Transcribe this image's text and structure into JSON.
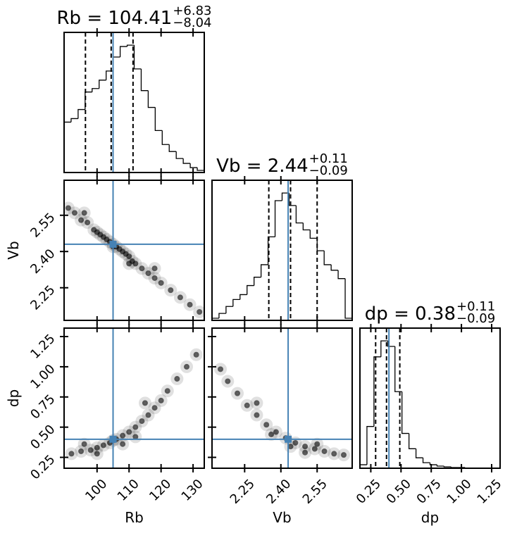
{
  "chart_data": [
    {
      "type": "histogram",
      "title": "Rb = 104.41",
      "title_upper": "+6.83",
      "title_lower": "−8.04",
      "bins": [
        89.7,
        91.89,
        94.08,
        96.27,
        98.46,
        100.65,
        102.84,
        105.03,
        107.22,
        109.41,
        111.6,
        113.79,
        115.98,
        118.17,
        120.36,
        122.55,
        124.74,
        126.93,
        129.12,
        131.31,
        133.5
      ],
      "values": [
        72,
        77,
        90,
        115,
        120,
        132,
        145,
        165,
        180,
        182,
        148,
        117,
        93,
        60,
        40,
        30,
        20,
        13,
        7,
        3
      ],
      "quantiles": [
        96.37,
        104.41,
        111.24
      ],
      "truth": 105,
      "truth_color": "#4682b4",
      "color": "#000000",
      "xlim": [
        89.7,
        133.5
      ],
      "xticks": [
        100,
        110,
        120,
        130
      ]
    },
    {
      "type": "scatter",
      "x": [
        91,
        93,
        95,
        97,
        99,
        100,
        101,
        102,
        103,
        104,
        105,
        105,
        106,
        107,
        108,
        109,
        110,
        111,
        112,
        114,
        116,
        118,
        120,
        123,
        126,
        129,
        132,
        96,
        110,
        118
      ],
      "y": [
        2.58,
        2.56,
        2.53,
        2.52,
        2.49,
        2.48,
        2.47,
        2.46,
        2.45,
        2.44,
        2.43,
        2.42,
        2.42,
        2.41,
        2.4,
        2.39,
        2.38,
        2.36,
        2.35,
        2.33,
        2.31,
        2.29,
        2.27,
        2.24,
        2.21,
        2.18,
        2.15,
        2.56,
        2.35,
        2.33
      ],
      "truth_x": 105,
      "truth_y": 2.43,
      "truth_color": "#4682b4",
      "color": "#000000",
      "xlim": [
        89.7,
        133.5
      ],
      "xticks": [
        100,
        110,
        120,
        130
      ],
      "ylim": [
        2.115,
        2.695
      ],
      "yticks": [
        2.25,
        {
          "value": 2.4,
          "label": "2.40"
        },
        2.55
      ],
      "ylabel": "Vb"
    },
    {
      "type": "histogram",
      "title": "Vb = 2.44",
      "title_upper": "+0.11",
      "title_lower": "−0.09",
      "bins": [
        2.115,
        2.144,
        2.173,
        2.202,
        2.231,
        2.26,
        2.289,
        2.318,
        2.347,
        2.376,
        2.405,
        2.434,
        2.463,
        2.492,
        2.521,
        2.55,
        2.579,
        2.608,
        2.637,
        2.666,
        2.695
      ],
      "values": [
        3,
        10,
        20,
        30,
        37,
        50,
        62,
        80,
        120,
        172,
        183,
        165,
        140,
        130,
        118,
        100,
        80,
        72,
        60,
        3
      ],
      "quantiles": [
        2.35,
        2.44,
        2.55
      ],
      "truth": 2.43,
      "truth_color": "#4682b4",
      "color": "#000000",
      "xlim": [
        2.115,
        2.695
      ],
      "xticks": [
        2.25,
        {
          "value": 2.4,
          "label": "2.40"
        },
        2.55
      ]
    },
    {
      "type": "scatter",
      "x": [
        92,
        95,
        98,
        100,
        102,
        104,
        105,
        106,
        108,
        110,
        112,
        114,
        116,
        118,
        120,
        122,
        125,
        128,
        131,
        100,
        108,
        112,
        115,
        96
      ],
      "y": [
        0.28,
        0.3,
        0.31,
        0.33,
        0.35,
        0.37,
        0.39,
        0.4,
        0.43,
        0.46,
        0.5,
        0.55,
        0.6,
        0.66,
        0.72,
        0.8,
        0.9,
        1.0,
        1.1,
        0.28,
        0.36,
        0.42,
        0.7,
        0.36
      ],
      "truth_x": 105,
      "truth_y": 0.4,
      "truth_color": "#4682b4",
      "color": "#000000",
      "xlim": [
        89.7,
        133.5
      ],
      "xticks": [
        100,
        110,
        120,
        130
      ],
      "xlabel": "Rb",
      "ylim": [
        0.16,
        1.32
      ],
      "yticks": [
        0.25,
        {
          "value": 0.5,
          "label": "0.50"
        },
        0.75,
        {
          "value": 1,
          "label": "1.00"
        },
        1.25
      ],
      "ylabel": "dp"
    },
    {
      "type": "scatter",
      "x": [
        2.15,
        2.18,
        2.22,
        2.26,
        2.3,
        2.34,
        2.38,
        2.42,
        2.46,
        2.5,
        2.54,
        2.58,
        2.62,
        2.66,
        2.44,
        2.36,
        2.5,
        2.3,
        2.55
      ],
      "y": [
        0.98,
        0.88,
        0.78,
        0.68,
        0.6,
        0.52,
        0.46,
        0.41,
        0.37,
        0.34,
        0.32,
        0.3,
        0.28,
        0.27,
        0.34,
        0.44,
        0.29,
        0.7,
        0.36
      ],
      "truth_x": 2.43,
      "truth_y": 0.4,
      "truth_color": "#4682b4",
      "color": "#000000",
      "xlim": [
        2.115,
        2.695
      ],
      "xticks": [
        2.25,
        {
          "value": 2.4,
          "label": "2.40"
        },
        2.55
      ],
      "xlabel": "Vb",
      "ylim": [
        0.16,
        1.32
      ],
      "yticks": [
        0.25,
        {
          "value": 0.5,
          "label": "0.50"
        },
        0.75,
        {
          "value": 1,
          "label": "1.00"
        },
        1.25
      ]
    },
    {
      "type": "histogram",
      "title": "dp = 0.38",
      "title_upper": "+0.11",
      "title_lower": "−0.09",
      "bins": [
        0.16,
        0.218,
        0.276,
        0.334,
        0.392,
        0.45,
        0.508,
        0.566,
        0.624,
        0.682,
        0.74,
        0.798,
        0.856,
        0.914,
        0.972,
        1.03,
        1.088,
        1.146,
        1.204,
        1.262,
        1.32
      ],
      "values": [
        5,
        60,
        160,
        183,
        175,
        110,
        50,
        28,
        15,
        8,
        5,
        3,
        2,
        1,
        1,
        0,
        0,
        0,
        0,
        0
      ],
      "quantiles": [
        0.29,
        0.38,
        0.49
      ],
      "truth": 0.4,
      "truth_color": "#4682b4",
      "color": "#000000",
      "xlim": [
        0.16,
        1.32
      ],
      "xticks": [
        0.25,
        {
          "value": 0.5,
          "label": "0.50"
        },
        0.75,
        {
          "value": 1,
          "label": "1.00"
        },
        1.25
      ],
      "xlabel": "dp"
    }
  ]
}
